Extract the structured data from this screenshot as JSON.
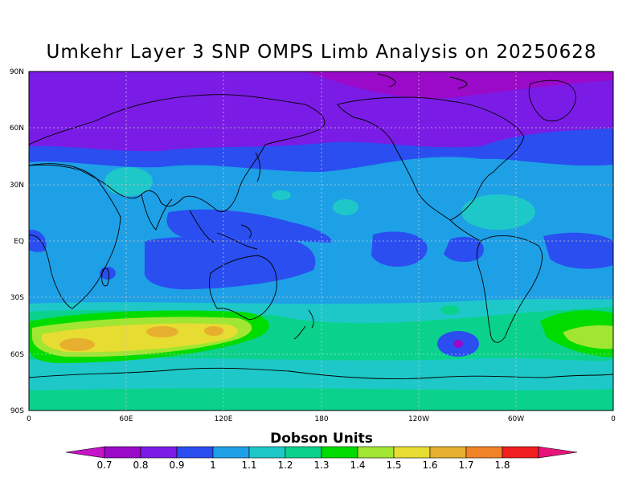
{
  "title": "Umkehr Layer 3 SNP OMPS Limb Analysis on 20250628",
  "colors": {
    "0.7": "#9a0ac8",
    "0.8": "#7a1ce6",
    "0.9": "#2a4ef0",
    "1.0": "#1ea0e6",
    "1.1": "#1ec8c8",
    "1.2": "#0ad28c",
    "1.3": "#00dc00",
    "1.4": "#a0e632",
    "1.5": "#e6dc32",
    "1.6": "#e6af2d",
    "1.7": "#f08228",
    "1.8": "#f01e1e",
    "over": "#e6147a",
    "under": "#c814c8"
  },
  "axes": {
    "lat_labels": [
      "90N",
      "60N",
      "30N",
      "EQ",
      "30S",
      "60S",
      "90S"
    ],
    "lon_labels": [
      "0",
      "60E",
      "120E",
      "180",
      "120W",
      "60W",
      "0"
    ]
  },
  "legend": {
    "title": "Dobson Units",
    "values": [
      "0.7",
      "0.8",
      "0.9",
      "1",
      "1.1",
      "1.2",
      "1.3",
      "1.4",
      "1.5",
      "1.6",
      "1.7",
      "1.8"
    ],
    "bins": [
      "#9a0ac8",
      "#7a1ce6",
      "#2a4ef0",
      "#1ea0e6",
      "#1ec8c8",
      "#0ad28c",
      "#00dc00",
      "#a0e632",
      "#e6dc32",
      "#e6af2d",
      "#f08228",
      "#f01e1e"
    ],
    "under_color": "#c814c8",
    "over_color": "#e6147a"
  }
}
